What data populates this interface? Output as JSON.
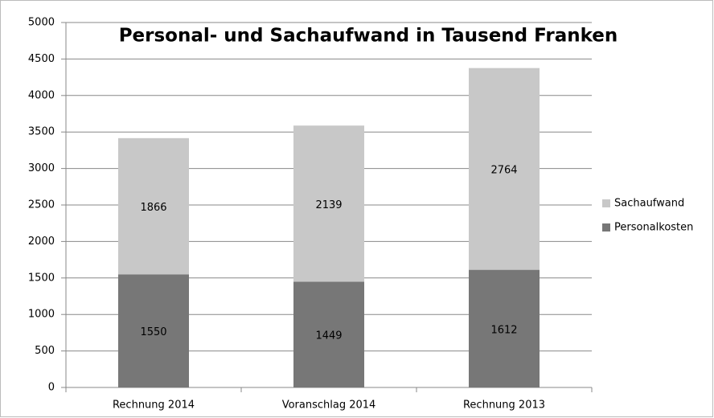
{
  "chart_data": {
    "type": "stacked_bar",
    "title": "Personal- und Sachaufwand in Tausend Franken",
    "categories": [
      "Rechnung 2014",
      "Voranschlag 2014",
      "Rechnung 2013"
    ],
    "series": [
      {
        "name": "Personalkosten",
        "color": "#777777",
        "values": [
          1550,
          1449,
          1612
        ]
      },
      {
        "name": "Sachaufwand",
        "color": "#c8c8c8",
        "values": [
          1866,
          2139,
          2764
        ]
      }
    ],
    "ylim": [
      0,
      5000
    ],
    "yticks": [
      0,
      500,
      1000,
      1500,
      2000,
      2500,
      3000,
      3500,
      4000,
      4500,
      5000
    ],
    "grid": true,
    "legend": "right"
  }
}
